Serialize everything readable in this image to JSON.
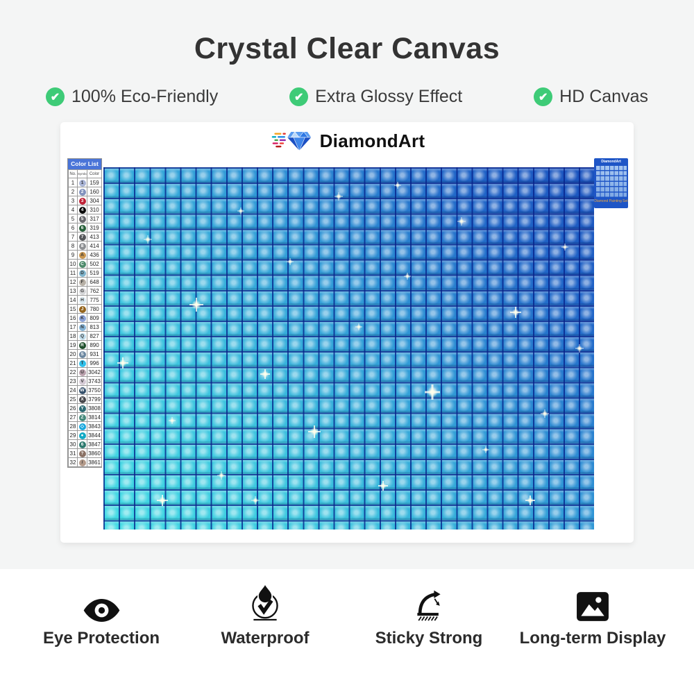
{
  "title": "Crystal Clear Canvas",
  "icons": {
    "check": "✔"
  },
  "top_features": [
    {
      "label": "100% Eco-Friendly"
    },
    {
      "label": "Extra Glossy Effect"
    },
    {
      "label": "HD Canvas"
    }
  ],
  "brand": {
    "name": "DiamondArt"
  },
  "color_list": {
    "title": "Color List",
    "columns": [
      "No.",
      "Symbol",
      "Color"
    ],
    "rows": [
      {
        "no": "1",
        "symbol": "1",
        "dot": "#a9b4d6",
        "code": "159"
      },
      {
        "no": "2",
        "symbol": "2",
        "dot": "#8191bd",
        "code": "160"
      },
      {
        "no": "3",
        "symbol": "3",
        "dot": "#bf2237",
        "code": "304"
      },
      {
        "no": "4",
        "symbol": "4",
        "dot": "#0a0a0a",
        "code": "310"
      },
      {
        "no": "5",
        "symbol": "5",
        "dot": "#66666b",
        "code": "317"
      },
      {
        "no": "6",
        "symbol": "6",
        "dot": "#27603a",
        "code": "319"
      },
      {
        "no": "7",
        "symbol": "7",
        "dot": "#55575a",
        "code": "413"
      },
      {
        "no": "8",
        "symbol": "8",
        "dot": "#8e9093",
        "code": "414"
      },
      {
        "no": "9",
        "symbol": "A",
        "dot": "#c9964e",
        "code": "436"
      },
      {
        "no": "10",
        "symbol": "C",
        "dot": "#4c8a6a",
        "code": "502"
      },
      {
        "no": "11",
        "symbol": "D",
        "dot": "#7fb4cc",
        "code": "519"
      },
      {
        "no": "12",
        "symbol": "F",
        "dot": "#b7b0a6",
        "code": "648"
      },
      {
        "no": "13",
        "symbol": "G",
        "dot": "#d6d7d9",
        "code": "762"
      },
      {
        "no": "14",
        "symbol": "H",
        "dot": "#dcebf2",
        "code": "775"
      },
      {
        "no": "15",
        "symbol": "J",
        "dot": "#95651d",
        "code": "780"
      },
      {
        "no": "16",
        "symbol": "K",
        "dot": "#8ca3d8",
        "code": "809"
      },
      {
        "no": "17",
        "symbol": "N",
        "dot": "#84b3d6",
        "code": "813"
      },
      {
        "no": "18",
        "symbol": "Q",
        "dot": "#c2dfee",
        "code": "827"
      },
      {
        "no": "19",
        "symbol": "R",
        "dot": "#1d4e2a",
        "code": "890"
      },
      {
        "no": "20",
        "symbol": "S",
        "dot": "#6c87a0",
        "code": "931"
      },
      {
        "no": "21",
        "symbol": "T",
        "dot": "#2fbfe9",
        "code": "996"
      },
      {
        "no": "22",
        "symbol": "U",
        "dot": "#b9a0ac",
        "code": "3042"
      },
      {
        "no": "23",
        "symbol": "V",
        "dot": "#d6cbd6",
        "code": "3743"
      },
      {
        "no": "24",
        "symbol": "W",
        "dot": "#35506b",
        "code": "3750"
      },
      {
        "no": "25",
        "symbol": "X",
        "dot": "#47474b",
        "code": "3799"
      },
      {
        "no": "26",
        "symbol": "Y",
        "dot": "#2d6b74",
        "code": "3808"
      },
      {
        "no": "27",
        "symbol": "Z",
        "dot": "#45897b",
        "code": "3814"
      },
      {
        "no": "28",
        "symbol": "◇",
        "dot": "#18a7dd",
        "code": "3843"
      },
      {
        "no": "29",
        "symbol": "●",
        "dot": "#12a9c4",
        "code": "3844"
      },
      {
        "no": "30",
        "symbol": "6",
        "dot": "#2f7a6f",
        "code": "3847"
      },
      {
        "no": "31",
        "symbol": "?",
        "dot": "#8a7164",
        "code": "3860"
      },
      {
        "no": "32",
        "symbol": "/",
        "dot": "#b39a8a",
        "code": "3861"
      }
    ]
  },
  "mini_card": {
    "brand": "DiamondArt",
    "caption": "Diamond Painting Set"
  },
  "bottom_features": [
    {
      "icon": "eye-icon",
      "label": "Eye Protection"
    },
    {
      "icon": "waterproof-icon",
      "label": "Waterproof"
    },
    {
      "icon": "sticky-icon",
      "label": "Sticky Strong"
    },
    {
      "icon": "display-icon",
      "label": "Long-term Display"
    }
  ],
  "colors": {
    "accent_green": "#3ecb77",
    "canvas_light": "#41dce4",
    "canvas_dark": "#1a51bd",
    "grout_blue": "#06228a",
    "color_list_header": "#4a74d8",
    "mini_card_blue": "#1e55c6",
    "mini_caption_orange": "#f2a93b"
  }
}
